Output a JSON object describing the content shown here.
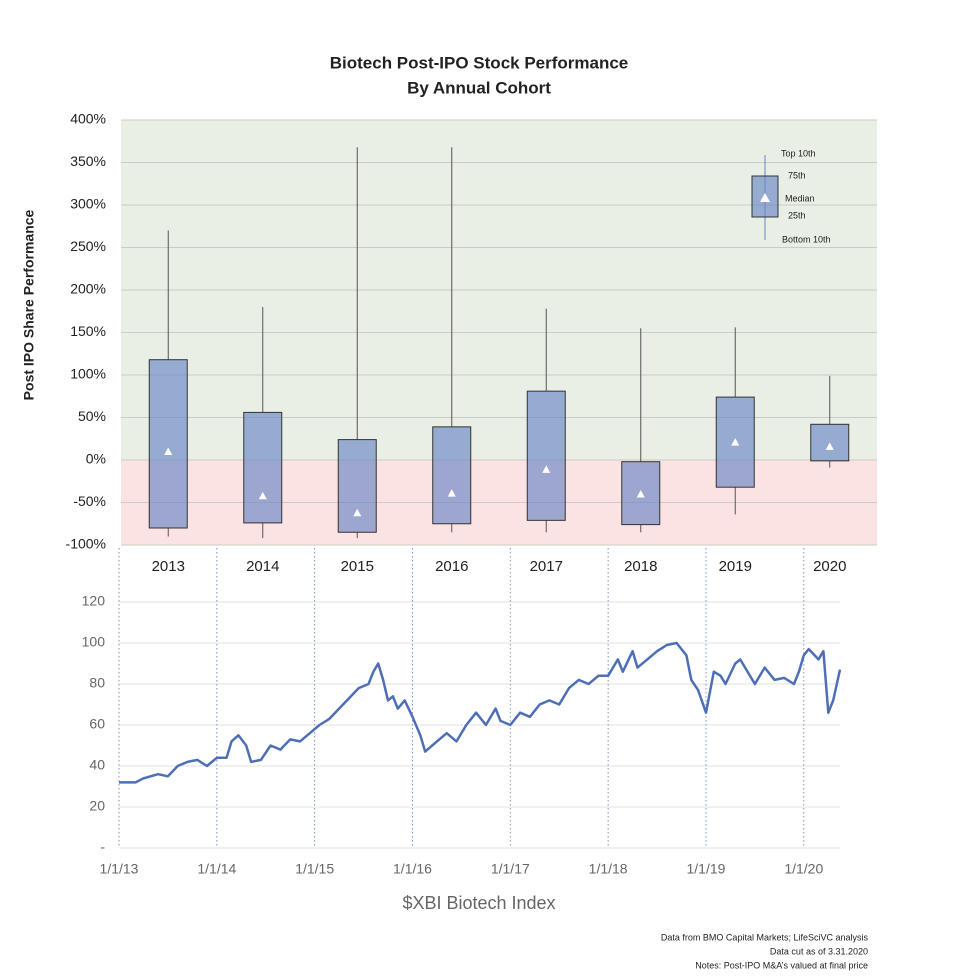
{
  "chart_data": [
    {
      "type": "box",
      "title": "Biotech Post-IPO Stock Performance",
      "subtitle": "By Annual Cohort",
      "y_label": "Post IPO Share Performance",
      "categories": [
        "2013",
        "2014",
        "2015",
        "2016",
        "2017",
        "2018",
        "2019",
        "2020"
      ],
      "high": [
        270,
        180,
        368,
        368,
        178,
        155,
        156,
        99
      ],
      "q3": [
        118,
        56,
        24,
        39,
        81,
        -2,
        74,
        42
      ],
      "median": [
        10,
        -42,
        -62,
        -39,
        -11,
        -40,
        21,
        16
      ],
      "q1": [
        -80,
        -74,
        -85,
        -75,
        -71,
        -76,
        -32,
        -1
      ],
      "low": [
        -90,
        -92,
        -92,
        -85,
        -85,
        -85,
        -64,
        -9
      ],
      "color": "#6a86c4",
      "band_colors": [
        "#e9efe4",
        "#fbe3e3"
      ],
      "ylim": [
        -100,
        400
      ],
      "yticks": [
        {
          "value": -100,
          "label": "-100%"
        },
        {
          "value": -50,
          "label": "-50%"
        },
        {
          "value": 0,
          "label": "0%"
        },
        {
          "value": 50,
          "label": "50%"
        },
        {
          "value": 100,
          "label": "100%"
        },
        {
          "value": 150,
          "label": "150%"
        },
        {
          "value": 200,
          "label": "200%"
        },
        {
          "value": 250,
          "label": "250%"
        },
        {
          "value": 300,
          "label": "300%"
        },
        {
          "value": 350,
          "label": "350%"
        },
        {
          "value": 400,
          "label": "400%"
        }
      ],
      "grid": true,
      "legend": [
        "Top 10th",
        "75th",
        "Median",
        "25th",
        "Bottom 10th"
      ],
      "legend_position": "upper right"
    },
    {
      "type": "line",
      "x_label": "$XBI Biotech Index",
      "series": [
        {
          "color": "#4e6fb5",
          "x": [
            2013.0,
            2013.17,
            2013.25,
            2013.4,
            2013.5,
            2013.6,
            2013.7,
            2013.8,
            2013.9,
            2014.0,
            2014.1,
            2014.15,
            2014.22,
            2014.3,
            2014.35,
            2014.45,
            2014.55,
            2014.65,
            2014.75,
            2014.85,
            2014.95,
            2015.05,
            2015.15,
            2015.25,
            2015.35,
            2015.45,
            2015.55,
            2015.6,
            2015.65,
            2015.7,
            2015.75,
            2015.8,
            2015.85,
            2015.92,
            2016.0,
            2016.08,
            2016.13,
            2016.25,
            2016.35,
            2016.45,
            2016.55,
            2016.65,
            2016.75,
            2016.85,
            2016.9,
            2017.0,
            2017.1,
            2017.2,
            2017.3,
            2017.4,
            2017.5,
            2017.6,
            2017.7,
            2017.8,
            2017.9,
            2018.0,
            2018.1,
            2018.15,
            2018.25,
            2018.3,
            2018.4,
            2018.5,
            2018.6,
            2018.7,
            2018.8,
            2018.85,
            2018.92,
            2019.0,
            2019.08,
            2019.15,
            2019.2,
            2019.3,
            2019.35,
            2019.45,
            2019.5,
            2019.6,
            2019.7,
            2019.8,
            2019.9,
            2019.95,
            2020.0,
            2020.05,
            2020.15,
            2020.2,
            2020.25,
            2020.3,
            2020.37
          ],
          "values": [
            32,
            32,
            34,
            36,
            35,
            40,
            42,
            43,
            40,
            44,
            44,
            52,
            55,
            50,
            42,
            43,
            50,
            48,
            53,
            52,
            56,
            60,
            63,
            68,
            73,
            78,
            80,
            86,
            90,
            82,
            72,
            74,
            68,
            72,
            64,
            55,
            47,
            52,
            56,
            52,
            60,
            66,
            60,
            68,
            62,
            60,
            66,
            64,
            70,
            72,
            70,
            78,
            82,
            80,
            84,
            84,
            92,
            86,
            96,
            88,
            92,
            96,
            99,
            100,
            94,
            82,
            77,
            66,
            86,
            84,
            80,
            90,
            92,
            84,
            80,
            88,
            82,
            83,
            80,
            86,
            94,
            97,
            92,
            96,
            66,
            72,
            87
          ]
        }
      ],
      "xlim": [
        2013,
        2020.37
      ],
      "xticks": [
        {
          "value": 2013,
          "label": "1/1/13"
        },
        {
          "value": 2014,
          "label": "1/1/14"
        },
        {
          "value": 2015,
          "label": "1/1/15"
        },
        {
          "value": 2016,
          "label": "1/1/16"
        },
        {
          "value": 2017,
          "label": "1/1/17"
        },
        {
          "value": 2018,
          "label": "1/1/18"
        },
        {
          "value": 2019,
          "label": "1/1/19"
        },
        {
          "value": 2020,
          "label": "1/1/20"
        }
      ],
      "ylim": [
        0,
        120
      ],
      "yticks": [
        {
          "value": 0,
          "label": "-"
        },
        20,
        40,
        60,
        80,
        100,
        120
      ],
      "grid": true
    }
  ],
  "footnotes": [
    "Data from BMO Capital Markets; LifeSciVC analysis",
    "Data cut as of 3.31.2020",
    "Notes: Post-IPO M&A’s valued at final price"
  ]
}
